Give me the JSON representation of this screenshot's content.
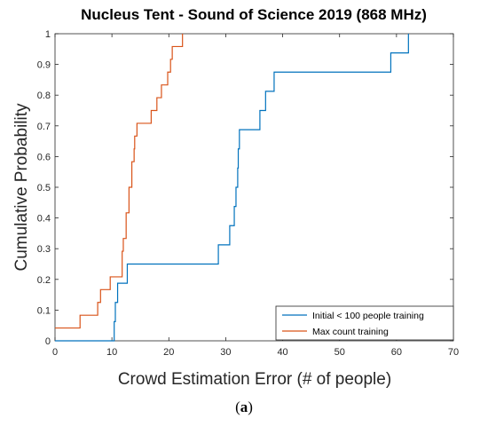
{
  "caption": {
    "open": "(",
    "letter": "a",
    "close": ")"
  },
  "chart_data": {
    "type": "line",
    "step": true,
    "title": "Nucleus Tent - Sound of Science 2019 (868 MHz)",
    "xlabel": "Crowd Estimation Error (# of people)",
    "ylabel": "Cumulative Probability",
    "xlim": [
      0,
      70
    ],
    "ylim": [
      0,
      1
    ],
    "xticks": [
      0,
      10,
      20,
      30,
      40,
      50,
      60,
      70
    ],
    "yticks": [
      0,
      0.1,
      0.2,
      0.3,
      0.4,
      0.5,
      0.6,
      0.7,
      0.8,
      0.9,
      1
    ],
    "grid": false,
    "legend_position": "bottom-right",
    "series": [
      {
        "name": "Initial < 100 people training",
        "color": "#0072BD",
        "x": [
          10.4,
          10.6,
          11.0,
          12.7,
          28.7,
          30.7,
          31.5,
          31.8,
          32.1,
          32.2,
          32.4,
          36.0,
          37.0,
          37.8,
          38.5,
          59.0,
          62.1
        ],
        "y": [
          0.0625,
          0.125,
          0.1875,
          0.25,
          0.3125,
          0.375,
          0.4375,
          0.5,
          0.5625,
          0.625,
          0.6875,
          0.75,
          0.8125,
          0.8125,
          0.875,
          0.9375,
          1.0
        ]
      },
      {
        "name": "Max count training",
        "color": "#D95319",
        "x": [
          4.4,
          7.5,
          8.0,
          9.7,
          11.8,
          12.0,
          12.5,
          13.0,
          13.5,
          13.9,
          14.0,
          14.4,
          15.0,
          16.9,
          17.9,
          18.7,
          19.8,
          20.3,
          20.6,
          20.9,
          22.4
        ],
        "y": [
          0.0833,
          0.125,
          0.1667,
          0.2083,
          0.2917,
          0.3333,
          0.4167,
          0.5,
          0.5833,
          0.625,
          0.6667,
          0.7083,
          0.7083,
          0.75,
          0.7917,
          0.8333,
          0.875,
          0.9167,
          0.9583,
          0.9583,
          1.0
        ]
      }
    ],
    "series_start_y": [
      0,
      0.0417
    ]
  }
}
